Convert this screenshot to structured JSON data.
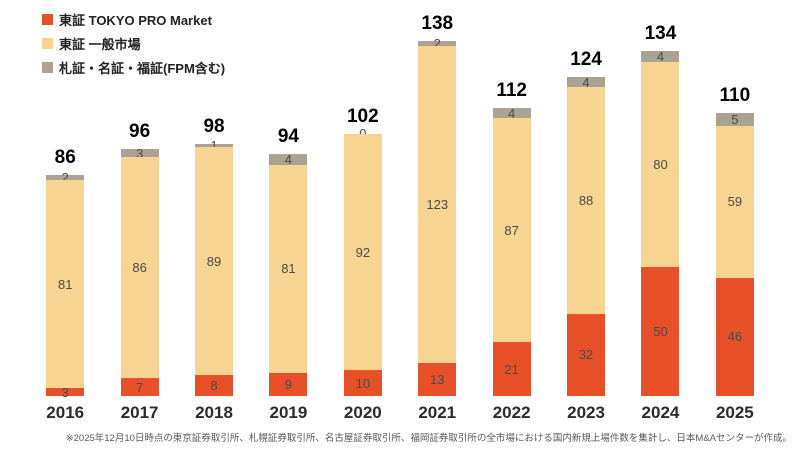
{
  "legend": {
    "items": [
      {
        "label": "東証 TOKYO PRO Market",
        "color": "#e8502a"
      },
      {
        "label": "東証 一般市場",
        "color": "#f7d491"
      },
      {
        "label": "札証・名証・福証(FPM含む)",
        "color": "#aba291"
      }
    ]
  },
  "chart_data": {
    "type": "bar",
    "stacked": true,
    "title": "",
    "xlabel": "",
    "ylabel": "",
    "ylim": [
      0,
      140
    ],
    "grid": false,
    "legend_position": "top-left",
    "categories": [
      "2016",
      "2017",
      "2018",
      "2019",
      "2020",
      "2021",
      "2022",
      "2023",
      "2024",
      "2025"
    ],
    "series": [
      {
        "name": "東証 TOKYO PRO Market",
        "color": "#e8502a",
        "values": [
          3,
          7,
          8,
          9,
          10,
          13,
          21,
          32,
          50,
          46
        ]
      },
      {
        "name": "東証 一般市場",
        "color": "#f7d491",
        "values": [
          81,
          86,
          89,
          81,
          92,
          123,
          87,
          88,
          80,
          59
        ]
      },
      {
        "name": "札証・名証・福証(FPM含む)",
        "color": "#aba291",
        "values": [
          2,
          3,
          1,
          4,
          0,
          2,
          4,
          4,
          4,
          5
        ]
      }
    ],
    "totals": [
      86,
      96,
      98,
      94,
      102,
      138,
      112,
      124,
      134,
      110
    ]
  },
  "footnote": "※2025年12月10日時点の東京証券取引所、札幌証券取引所、名古屋証券取引所、福岡証券取引所の全市場における国内新規上場件数を集計し、日本M&Aセンターが作成。"
}
